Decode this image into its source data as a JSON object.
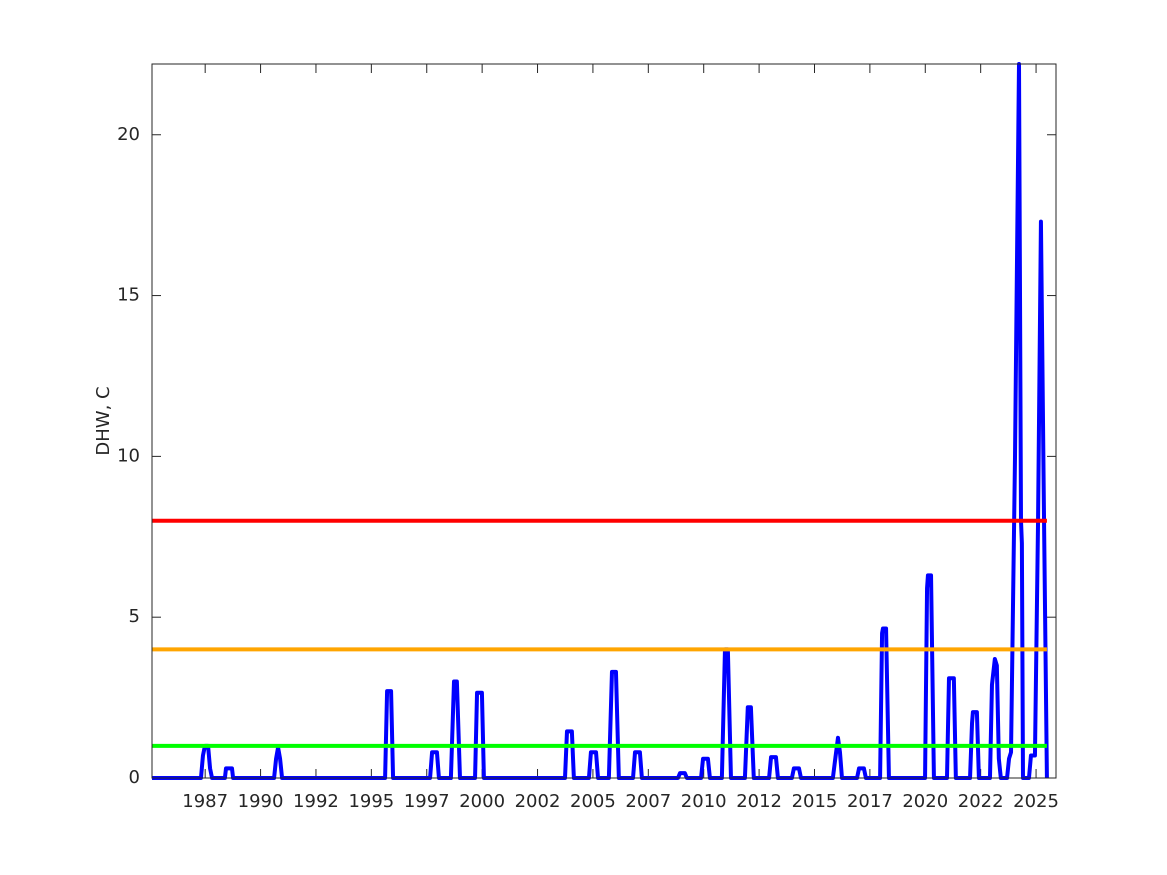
{
  "chart_data": {
    "type": "line",
    "y_label": "DHW, C",
    "x": [
      1985.1,
      1987.31,
      1987.4,
      1987.49,
      1987.63,
      1987.72,
      1987.81,
      1988.39,
      1988.44,
      1988.71,
      1988.76,
      1990.61,
      1990.7,
      1990.79,
      1990.88,
      1990.97,
      1995.62,
      1995.71,
      1995.89,
      1995.98,
      1997.65,
      1997.74,
      1997.96,
      1998.05,
      1998.59,
      1998.73,
      1998.86,
      1999.0,
      1999.68,
      1999.77,
      1999.99,
      2000.08,
      2003.74,
      2003.83,
      2004.05,
      2004.14,
      2004.82,
      2004.91,
      2005.14,
      2005.23,
      2005.72,
      2005.86,
      2006.04,
      2006.17,
      2006.81,
      2006.9,
      2007.12,
      2007.21,
      2008.84,
      2008.93,
      2009.15,
      2009.24,
      2009.88,
      2009.97,
      2010.19,
      2010.28,
      2010.82,
      2010.96,
      2011.09,
      2011.23,
      2011.86,
      2011.99,
      2012.13,
      2012.26,
      2012.95,
      2013.04,
      2013.26,
      2013.35,
      2013.98,
      2014.07,
      2014.3,
      2014.39,
      2015.83,
      2015.92,
      2016.06,
      2016.15,
      2016.24,
      2016.92,
      2017.01,
      2017.23,
      2017.32,
      2017.96,
      2018.05,
      2018.09,
      2018.23,
      2018.36,
      2019.99,
      2020.08,
      2020.12,
      2020.26,
      2020.39,
      2020.98,
      2021.07,
      2021.29,
      2021.38,
      2022.02,
      2022.11,
      2022.15,
      2022.33,
      2022.42,
      2022.92,
      2023.01,
      2023.14,
      2023.23,
      2023.32,
      2023.41,
      2023.69,
      2023.78,
      2023.87,
      2024.05,
      2024.23,
      2024.32,
      2024.36,
      2024.41,
      2024.68,
      2024.77,
      2024.95,
      2025.09,
      2025.22,
      2025.36,
      2025.49
    ],
    "series": [
      {
        "color": "#0000ff",
        "values": [
          0,
          0,
          0.7,
          1.0,
          1.0,
          0.3,
          0,
          0,
          0.3,
          0.3,
          0,
          0,
          0.6,
          0.95,
          0.6,
          0,
          0,
          2.7,
          2.7,
          0,
          0,
          0.8,
          0.8,
          0,
          0,
          3.0,
          3.0,
          0,
          0,
          2.65,
          2.65,
          0,
          0,
          1.45,
          1.45,
          0,
          0,
          0.8,
          0.8,
          0,
          0,
          3.3,
          3.3,
          0,
          0,
          0.8,
          0.8,
          0,
          0,
          0.15,
          0.15,
          0,
          0,
          0.6,
          0.6,
          0,
          0,
          4.0,
          4.0,
          0,
          0,
          2.2,
          2.2,
          0,
          0,
          0.65,
          0.65,
          0,
          0,
          0.3,
          0.3,
          0,
          0,
          0.5,
          1.25,
          0.8,
          0,
          0,
          0.3,
          0.3,
          0,
          0,
          4.5,
          4.65,
          4.65,
          0,
          0,
          5.9,
          6.3,
          6.3,
          0,
          0,
          3.1,
          3.1,
          0,
          0,
          1.7,
          2.05,
          2.05,
          0,
          0,
          2.9,
          3.7,
          3.5,
          0.6,
          0,
          0,
          0.6,
          0.8,
          10,
          22.2,
          8,
          7.3,
          0,
          0,
          0.7,
          0.7,
          8,
          17.3,
          8,
          0
        ]
      }
    ],
    "reference_lines": [
      {
        "value": 1,
        "color": "#00ff00"
      },
      {
        "value": 4,
        "color": "#ffa500"
      },
      {
        "value": 8,
        "color": "#ff0000"
      }
    ],
    "xlim": [
      1985.1,
      2025.9
    ],
    "ylim": [
      0,
      22.2
    ],
    "xticks": [
      {
        "value": 1987.5,
        "label": "1987"
      },
      1990,
      {
        "value": 1992.5,
        "label": "1992"
      },
      1995,
      {
        "value": 1997.5,
        "label": "1997"
      },
      2000,
      {
        "value": 2002.5,
        "label": "2002"
      },
      2005,
      {
        "value": 2007.5,
        "label": "2007"
      },
      2010,
      {
        "value": 2012.5,
        "label": "2012"
      },
      2015,
      {
        "value": 2017.5,
        "label": "2017"
      },
      2020,
      {
        "value": 2022.5,
        "label": "2022"
      },
      2025
    ],
    "yticks": [
      0,
      5,
      10,
      15,
      20
    ]
  }
}
